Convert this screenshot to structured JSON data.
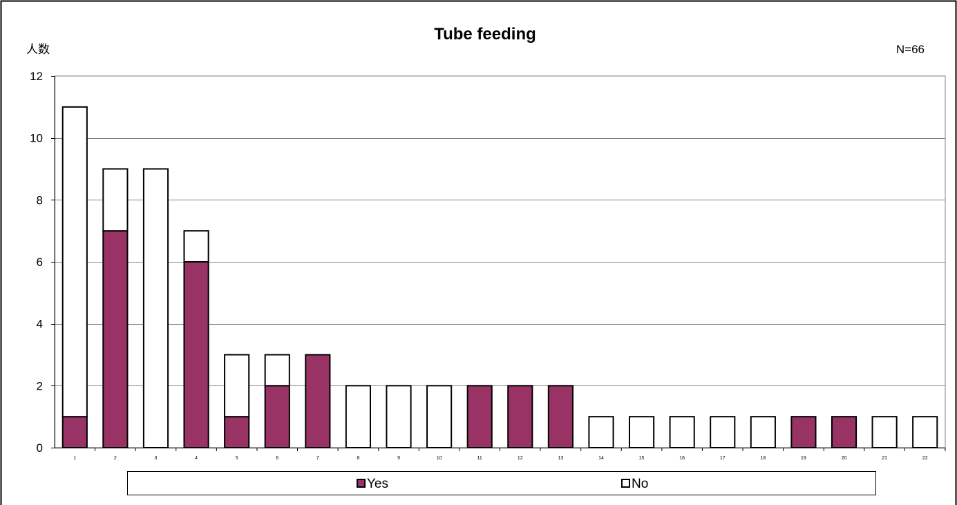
{
  "chart_data": {
    "type": "bar",
    "stacked": true,
    "title": "Tube feeding",
    "ylabel": "人数",
    "note": "N=66",
    "categories": [
      "1",
      "2",
      "3",
      "4",
      "5",
      "6",
      "7",
      "8",
      "9",
      "10",
      "11",
      "12",
      "13",
      "14",
      "15",
      "16",
      "17",
      "18",
      "19",
      "20",
      "21",
      "22"
    ],
    "series": [
      {
        "name": "Yes",
        "color": "#993366",
        "values": [
          1,
          7,
          0,
          6,
          1,
          2,
          3,
          0,
          0,
          0,
          2,
          2,
          2,
          0,
          0,
          0,
          0,
          0,
          1,
          1,
          0,
          0
        ]
      },
      {
        "name": "No",
        "color": "#ffffff",
        "values": [
          10,
          2,
          9,
          1,
          2,
          1,
          0,
          2,
          2,
          2,
          0,
          0,
          0,
          1,
          1,
          1,
          1,
          1,
          0,
          0,
          1,
          1
        ]
      }
    ],
    "ylim": [
      0,
      12
    ],
    "yticks": [
      0,
      2,
      4,
      6,
      8,
      10,
      12
    ],
    "grid": true,
    "legend": "bottom"
  }
}
